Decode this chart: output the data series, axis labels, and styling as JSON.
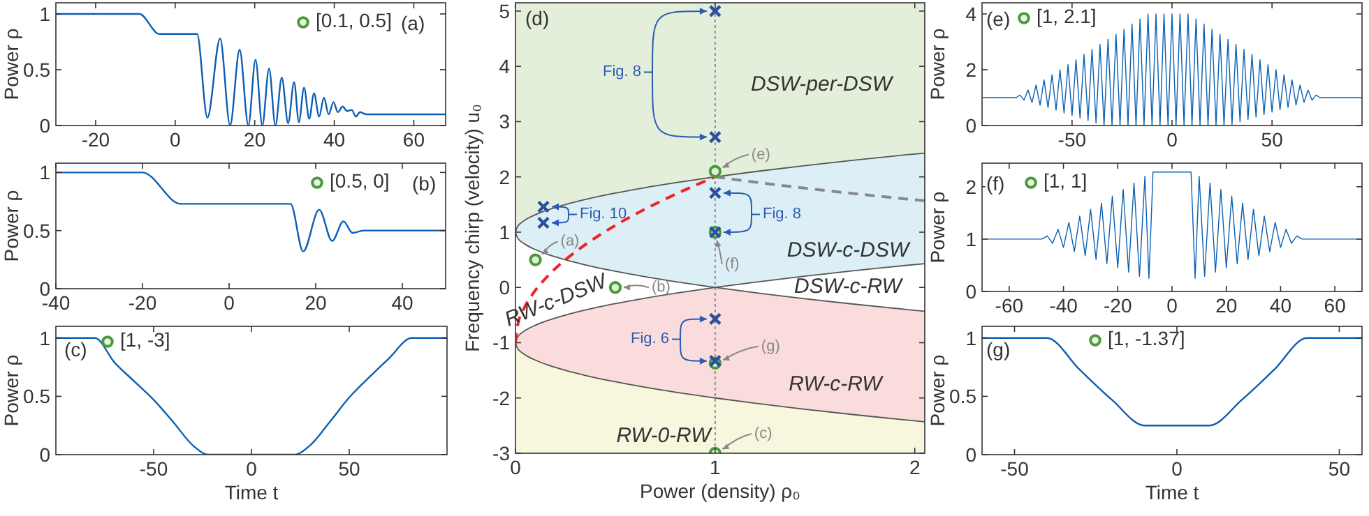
{
  "chart_data": [
    {
      "type": "line",
      "xlim": [
        -30,
        68
      ],
      "xticks": [
        -20,
        0,
        20,
        40,
        60
      ],
      "ylim": [
        0,
        1.1
      ],
      "yticks": [
        0,
        0.5,
        1
      ],
      "ylabel": "Power ρ",
      "annotations": [
        "(a)",
        "[0.1, 0.5]"
      ],
      "series": [
        {
          "color": "#0a5fb4",
          "x": [
            -30,
            -9,
            -4,
            5.5,
            8.1,
            11.3,
            13.8,
            16.2,
            18.4,
            20.2,
            21.9,
            23.6,
            25.2,
            26.8,
            28.4,
            29.9,
            31.1,
            32.4,
            33.7,
            34.9,
            36.2,
            37.4,
            38.6,
            39.8,
            40.9,
            42.1,
            43.2,
            44.4,
            45.4,
            46.5,
            48,
            68
          ],
          "values": [
            1,
            1,
            0.82,
            0.82,
            0.07,
            0.78,
            0,
            0.68,
            0,
            0.59,
            0,
            0.51,
            0,
            0.43,
            0.02,
            0.39,
            0.03,
            0.34,
            0.06,
            0.29,
            0.08,
            0.25,
            0.1,
            0.21,
            0.12,
            0.17,
            0.13,
            0.14,
            0.08,
            0.12,
            0.1,
            0.1
          ]
        }
      ]
    },
    {
      "type": "line",
      "xlim": [
        -40,
        50
      ],
      "xticks": [
        -40,
        -20,
        0,
        20,
        40
      ],
      "ylim": [
        0,
        1.08
      ],
      "yticks": [
        0,
        0.5,
        1
      ],
      "ylabel": "Power ρ",
      "annotations": [
        "(b)",
        "[0.5, 0]"
      ],
      "series": [
        {
          "color": "#0a5fb4",
          "x": [
            -40,
            -20,
            -11.2,
            14.2,
            17.1,
            20.8,
            23.8,
            26.4,
            28.5,
            31,
            50
          ],
          "values": [
            1,
            1,
            0.73,
            0.73,
            0.32,
            0.68,
            0.41,
            0.58,
            0.48,
            0.5,
            0.5
          ]
        }
      ]
    },
    {
      "type": "line",
      "xlim": [
        -100,
        100
      ],
      "xticks": [
        -50,
        0,
        50
      ],
      "ylim": [
        0,
        1.1
      ],
      "yticks": [
        0,
        0.5,
        1
      ],
      "xlabel": "Time t",
      "ylabel": "Power ρ",
      "annotations": [
        "(c)",
        "[1, -3]"
      ],
      "series": [
        {
          "color": "#0a5fb4",
          "x": [
            -100,
            -80,
            -70,
            -60,
            -50,
            -40,
            -30,
            -22,
            22,
            30,
            40,
            50,
            60,
            70,
            82,
            100
          ],
          "values": [
            1,
            1,
            0.79,
            0.63,
            0.47,
            0.28,
            0.08,
            0,
            0,
            0.08,
            0.28,
            0.49,
            0.66,
            0.82,
            1,
            1
          ]
        }
      ]
    },
    {
      "type": "line",
      "xlim": [
        0,
        2.05
      ],
      "xticks": [
        0,
        1,
        2
      ],
      "ylim": [
        -3,
        5.15
      ],
      "yticks": [
        -3,
        -2,
        -1,
        0,
        1,
        2,
        3,
        4,
        5
      ],
      "xlabel": "Power (density) ρ₀",
      "ylabel": "Frequency chirp (velocity) u₀",
      "ref_lines": [
        {
          "axis": "x",
          "value": 1,
          "color": "#777777",
          "line_style": "dotted"
        }
      ],
      "bands": [
        {
          "axis": "y",
          "from": -3,
          "to": -1,
          "color": "#f8f7de"
        }
      ],
      "annotations": [
        "(d)",
        "DSW-per-DSW",
        "DSW-c-DSW",
        "DSW-c-RW",
        "RW-c-DSW",
        "RW-c-RW",
        "RW-0-RW",
        "Fig. 8",
        "Fig. 10",
        "Fig. 8",
        "Fig. 6",
        {
          "text": "(a)",
          "x": 0.1,
          "y": 0.5
        },
        {
          "text": "(b)",
          "x": 0.5,
          "y": 0
        },
        {
          "text": "(c)",
          "x": 1,
          "y": -3
        },
        {
          "text": "(e)",
          "x": 1,
          "y": 2.1
        },
        {
          "text": "(f)",
          "x": 1,
          "y": 1
        },
        {
          "text": "(g)",
          "x": 1,
          "y": -1.37
        }
      ],
      "series": [
        {
          "color": "#555555",
          "line_style": "solid",
          "x": [
            0,
            0.01,
            0.04,
            0.09,
            0.16,
            0.25,
            0.36,
            0.49,
            0.64,
            0.81,
            1,
            1.21,
            1.44,
            1.69,
            1.96,
            2.05
          ],
          "values": [
            1,
            1.1,
            1.2,
            1.3,
            1.4,
            1.5,
            1.6,
            1.7,
            1.8,
            1.9,
            2,
            2.1,
            2.2,
            2.3,
            2.4,
            2.43
          ]
        },
        {
          "color": "#555555",
          "line_style": "solid",
          "x": [
            0,
            0.01,
            0.04,
            0.09,
            0.16,
            0.25,
            0.36,
            0.49,
            0.64,
            0.81,
            1,
            1.21,
            1.44,
            1.69,
            1.96,
            2.05
          ],
          "values": [
            1,
            0.9,
            0.8,
            0.7,
            0.6,
            0.5,
            0.4,
            0.3,
            0.2,
            0.1,
            0,
            -0.1,
            -0.2,
            -0.3,
            -0.4,
            -0.43
          ]
        },
        {
          "color": "#555555",
          "line_style": "solid",
          "x": [
            0,
            0.01,
            0.04,
            0.09,
            0.16,
            0.25,
            0.36,
            0.49,
            0.64,
            0.81,
            1,
            1.21,
            1.44,
            1.69,
            1.96,
            2.05
          ],
          "values": [
            -1,
            -0.9,
            -0.8,
            -0.7,
            -0.6,
            -0.5,
            -0.4,
            -0.3,
            -0.2,
            -0.1,
            0,
            0.1,
            0.2,
            0.3,
            0.4,
            0.43
          ]
        },
        {
          "color": "#555555",
          "line_style": "solid",
          "x": [
            0,
            0.01,
            0.04,
            0.09,
            0.16,
            0.25,
            0.36,
            0.49,
            0.64,
            0.81,
            1,
            1.21,
            1.44,
            1.69,
            1.96,
            2.05
          ],
          "values": [
            -1,
            -1.1,
            -1.2,
            -1.3,
            -1.4,
            -1.5,
            -1.6,
            -1.7,
            -1.8,
            -1.9,
            -2,
            -2.1,
            -2.2,
            -2.3,
            -2.4,
            -2.43
          ]
        },
        {
          "color": "#ee2222",
          "line_style": "dashed",
          "x": [
            0,
            0.01,
            0.04,
            0.09,
            0.16,
            0.25,
            0.36,
            0.49,
            0.64,
            0.81,
            1
          ],
          "values": [
            -1,
            -0.7,
            -0.4,
            -0.1,
            0.2,
            0.5,
            0.8,
            1.1,
            1.4,
            1.7,
            2
          ]
        },
        {
          "color": "#888888",
          "line_style": "dashed",
          "x": [
            1,
            1.21,
            1.44,
            1.69,
            1.96,
            2.05
          ],
          "values": [
            2,
            1.9,
            1.8,
            1.7,
            1.6,
            1.57
          ]
        },
        {
          "type": "scatter",
          "marker": "circle",
          "color": "#4a9a3a",
          "x": [
            0.1,
            0.5,
            1,
            1,
            1,
            1
          ],
          "values": [
            0.5,
            0,
            -3,
            2.1,
            1,
            -1.37
          ]
        },
        {
          "type": "scatter",
          "marker": "cross",
          "color": "#2b4ea0",
          "x": [
            1,
            1,
            1,
            1,
            1,
            1,
            0.14,
            0.14
          ],
          "values": [
            5,
            2.72,
            1.71,
            1,
            -0.57,
            -1.33,
            1.46,
            1.17
          ]
        }
      ]
    },
    {
      "type": "line",
      "xlim": [
        -95,
        95
      ],
      "xticks": [
        -50,
        0,
        50
      ],
      "ylim": [
        0,
        4.4
      ],
      "yticks": [
        0,
        2,
        4
      ],
      "ylabel": "Power ρ",
      "annotations": [
        "(e)",
        "[1, 2.1]"
      ],
      "series": [
        {
          "color": "#0a5fb4",
          "x": [
            -95,
            -78,
            -76,
            -74,
            -72,
            -70,
            -68,
            -66,
            -64,
            -62,
            -60,
            -58,
            -56,
            -54,
            -52,
            -50,
            -48,
            -46,
            -44,
            -42,
            -40,
            -38,
            -36,
            -34,
            -32,
            -30,
            -28,
            -26,
            -24,
            -22,
            -20,
            -18,
            -16,
            -14,
            -12,
            -10,
            -8,
            -6,
            -4,
            -2,
            0,
            2,
            4,
            6,
            8,
            10,
            12,
            14,
            16,
            18,
            20,
            22,
            24,
            26,
            28,
            30,
            32,
            34,
            36,
            38,
            40,
            42,
            44,
            46,
            48,
            50,
            52,
            54,
            56,
            58,
            60,
            62,
            64,
            66,
            68,
            70,
            72,
            74,
            95
          ],
          "values": [
            1,
            1,
            1.09,
            0.91,
            1.27,
            0.82,
            1.45,
            0.73,
            1.64,
            0.64,
            1.82,
            0.55,
            2,
            0.45,
            2.18,
            0.36,
            2.36,
            0.27,
            2.55,
            0.18,
            2.73,
            0.09,
            2.91,
            0,
            3.09,
            0,
            3.27,
            0,
            3.45,
            0,
            3.64,
            0,
            3.82,
            0,
            4,
            0,
            4,
            0,
            4,
            0,
            4,
            0,
            4,
            0,
            4,
            0,
            3.82,
            0,
            3.64,
            0,
            3.45,
            0,
            3.27,
            0,
            3.09,
            0.04,
            2.91,
            0.13,
            2.73,
            0.22,
            2.55,
            0.3,
            2.36,
            0.39,
            2.18,
            0.48,
            2,
            0.57,
            1.82,
            0.65,
            1.64,
            0.74,
            1.45,
            0.83,
            1.27,
            0.91,
            1.09,
            1,
            1
          ]
        }
      ]
    },
    {
      "type": "line",
      "xlim": [
        -70,
        70
      ],
      "xticks": [
        -60,
        -40,
        -20,
        0,
        20,
        40,
        60
      ],
      "ylim": [
        0,
        2.45
      ],
      "yticks": [
        0,
        1,
        2
      ],
      "ylabel": "Power ρ",
      "annotations": [
        "(f)",
        "[1, 1]"
      ],
      "series": [
        {
          "color": "#0a5fb4",
          "x": [
            -70,
            -48,
            -46,
            -44,
            -42,
            -40,
            -38,
            -36,
            -34,
            -32,
            -30,
            -28,
            -26,
            -24,
            -22,
            -20,
            -18,
            -16,
            -14,
            -12,
            -10,
            -8.5,
            -7,
            7,
            8.5,
            10,
            12,
            14,
            16,
            18,
            20,
            22,
            24,
            26,
            28,
            30,
            32,
            34,
            36,
            38,
            40,
            42,
            44,
            46,
            48,
            70
          ],
          "values": [
            1,
            1,
            1.06,
            0.92,
            1.19,
            0.84,
            1.32,
            0.76,
            1.44,
            0.68,
            1.57,
            0.61,
            1.69,
            0.53,
            1.82,
            0.45,
            1.95,
            0.37,
            2.07,
            0.29,
            2.2,
            0.25,
            2.28,
            2.28,
            0.25,
            2.2,
            0.29,
            2.07,
            0.37,
            1.95,
            0.45,
            1.82,
            0.53,
            1.69,
            0.61,
            1.57,
            0.68,
            1.44,
            0.76,
            1.32,
            0.84,
            1.19,
            0.92,
            1.06,
            1,
            1
          ]
        }
      ]
    },
    {
      "type": "line",
      "xlim": [
        -60,
        57
      ],
      "xticks": [
        -50,
        0,
        50
      ],
      "ylim": [
        0,
        1.1
      ],
      "yticks": [
        0,
        0.5,
        1
      ],
      "xlabel": "Time t",
      "ylabel": "Power ρ",
      "annotations": [
        "(g)",
        "[1, -1.37]"
      ],
      "series": [
        {
          "color": "#0a5fb4",
          "x": [
            -60,
            -40,
            -30,
            -20,
            -10,
            10,
            20,
            30,
            40,
            57
          ],
          "values": [
            1,
            1,
            0.73,
            0.47,
            0.25,
            0.25,
            0.47,
            0.73,
            1,
            1
          ]
        }
      ]
    }
  ]
}
